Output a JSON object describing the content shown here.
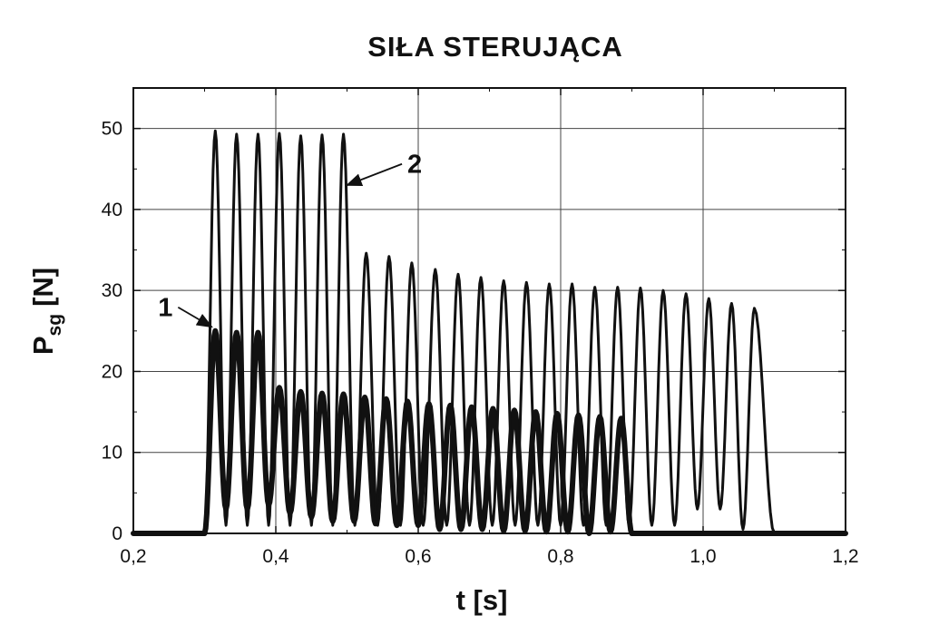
{
  "chart_data": {
    "type": "line",
    "title": "SIŁA STERUJĄCA",
    "xlabel": "t [s]",
    "ylabel": {
      "main": "P",
      "subscript": "sg",
      "unit": "[N]"
    },
    "xlim": [
      0.2,
      1.2
    ],
    "ylim": [
      0,
      55
    ],
    "xticks": [
      0.2,
      0.4,
      0.6,
      0.8,
      1.0,
      1.2
    ],
    "xtick_labels": [
      "0,2",
      "0,4",
      "0,6",
      "0,8",
      "1,0",
      "1,2"
    ],
    "yticks": [
      0,
      10,
      20,
      30,
      40,
      50
    ],
    "ytick_labels": [
      "0",
      "10",
      "20",
      "30",
      "40",
      "50"
    ],
    "grid": true,
    "series": [
      {
        "name": "1",
        "start": 0.3,
        "end": 0.9,
        "period": 0.03,
        "thickness": "thick",
        "peaks": [
          [
            0.315,
            25.0
          ],
          [
            0.345,
            24.8
          ],
          [
            0.375,
            24.8
          ],
          [
            0.405,
            18.0
          ],
          [
            0.435,
            17.5
          ],
          [
            0.465,
            17.3
          ],
          [
            0.495,
            17.2
          ],
          [
            0.525,
            16.8
          ],
          [
            0.555,
            16.6
          ],
          [
            0.585,
            16.3
          ],
          [
            0.615,
            16.0
          ],
          [
            0.645,
            15.8
          ],
          [
            0.675,
            15.6
          ],
          [
            0.705,
            15.4
          ],
          [
            0.735,
            15.2
          ],
          [
            0.765,
            15.0
          ],
          [
            0.795,
            14.8
          ],
          [
            0.825,
            14.6
          ],
          [
            0.855,
            14.4
          ],
          [
            0.885,
            14.2
          ]
        ],
        "minima": [
          [
            0.33,
            3.0
          ],
          [
            0.36,
            3.0
          ],
          [
            0.39,
            3.5
          ],
          [
            0.42,
            2.5
          ],
          [
            0.45,
            2.0
          ],
          [
            0.48,
            1.5
          ],
          [
            0.51,
            1.5
          ],
          [
            0.54,
            1.2
          ],
          [
            0.57,
            1.0
          ],
          [
            0.6,
            1.0
          ],
          [
            0.63,
            0.5
          ],
          [
            0.66,
            0.5
          ],
          [
            0.69,
            0.5
          ],
          [
            0.72,
            0.3
          ],
          [
            0.75,
            0.3
          ],
          [
            0.78,
            0.2
          ],
          [
            0.81,
            0.2
          ],
          [
            0.84,
            0.0
          ],
          [
            0.87,
            0.2
          ]
        ]
      },
      {
        "name": "2",
        "start": 0.3,
        "end": 1.1,
        "thickness": "thin",
        "peaks": [
          [
            0.315,
            49.7
          ],
          [
            0.345,
            49.3
          ],
          [
            0.375,
            49.3
          ],
          [
            0.405,
            49.4
          ],
          [
            0.435,
            49.1
          ],
          [
            0.465,
            49.2
          ],
          [
            0.495,
            49.3
          ],
          [
            0.527,
            34.6
          ],
          [
            0.559,
            34.2
          ],
          [
            0.591,
            33.4
          ],
          [
            0.624,
            32.6
          ],
          [
            0.656,
            32.0
          ],
          [
            0.688,
            31.6
          ],
          [
            0.72,
            31.2
          ],
          [
            0.752,
            31.0
          ],
          [
            0.784,
            30.8
          ],
          [
            0.816,
            30.8
          ],
          [
            0.848,
            30.4
          ],
          [
            0.88,
            30.4
          ],
          [
            0.912,
            30.3
          ],
          [
            0.944,
            30.0
          ],
          [
            0.976,
            29.6
          ],
          [
            1.008,
            29.0
          ],
          [
            1.04,
            28.4
          ],
          [
            1.072,
            27.8
          ]
        ],
        "minima": [
          [
            0.33,
            1.0
          ],
          [
            0.36,
            1.0
          ],
          [
            0.39,
            1.0
          ],
          [
            0.42,
            1.0
          ],
          [
            0.45,
            1.0
          ],
          [
            0.48,
            1.0
          ],
          [
            0.511,
            1.0
          ],
          [
            0.543,
            1.0
          ],
          [
            0.575,
            1.0
          ],
          [
            0.607,
            1.0
          ],
          [
            0.64,
            1.0
          ],
          [
            0.672,
            1.0
          ],
          [
            0.704,
            1.0
          ],
          [
            0.736,
            1.0
          ],
          [
            0.768,
            1.0
          ],
          [
            0.8,
            1.0
          ],
          [
            0.832,
            1.0
          ],
          [
            0.864,
            1.0
          ],
          [
            0.896,
            1.0
          ],
          [
            0.928,
            1.0
          ],
          [
            0.96,
            1.0
          ],
          [
            0.992,
            3.0
          ],
          [
            1.024,
            3.0
          ],
          [
            1.056,
            0.5
          ]
        ]
      }
    ],
    "annotations": [
      {
        "text": "1",
        "label_at": [
          0.245,
          26.8
        ],
        "arrow_to": [
          0.31,
          25.5
        ]
      },
      {
        "text": "2",
        "label_at": [
          0.595,
          44.5
        ],
        "arrow_to": [
          0.5,
          43.0
        ]
      }
    ]
  }
}
